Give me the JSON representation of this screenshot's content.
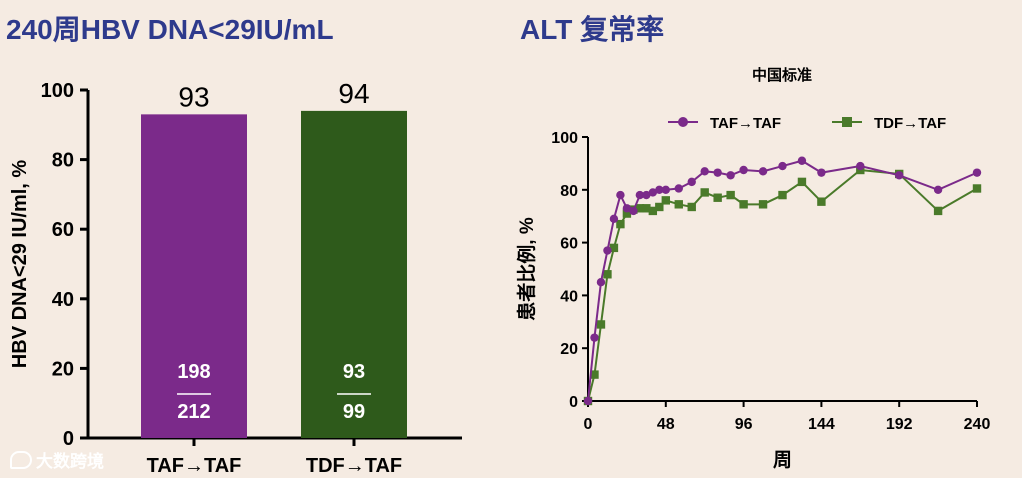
{
  "left_title": "240周HBV DNA<29IU/mL",
  "right_title": "ALT 复常率",
  "colors": {
    "title": "#2e3a8c",
    "taf": "#7b2a8a",
    "tdf": "#2e5a1b",
    "tdf_line": "#4a7a2a"
  },
  "watermark": {
    "icon": "chat-bubble-icon",
    "text": "大数跨境"
  },
  "chart_data": [
    {
      "type": "bar",
      "ylabel": "HBV DNA<29 IU/ml, %",
      "ylim": [
        0,
        100
      ],
      "yticks": [
        0,
        20,
        40,
        60,
        80,
        100
      ],
      "categories": [
        "TAF→TAF",
        "TDF→TAF"
      ],
      "values": [
        93,
        94
      ],
      "value_labels": [
        "93",
        "94"
      ],
      "fractions": [
        {
          "numerator": "198",
          "denominator": "212"
        },
        {
          "numerator": "93",
          "denominator": "99"
        }
      ],
      "colors": [
        "#7b2a8a",
        "#2e5a1b"
      ]
    },
    {
      "type": "line",
      "title": "中国标准",
      "xlabel": "周",
      "ylabel": "患者比例, %",
      "xlim": [
        0,
        240
      ],
      "ylim": [
        0,
        100
      ],
      "xticks": [
        0,
        48,
        96,
        144,
        192,
        240
      ],
      "yticks": [
        0,
        20,
        40,
        60,
        80,
        100
      ],
      "legend_position": "top",
      "series": [
        {
          "name": "TAF→TAF",
          "marker": "circle",
          "color": "#7b2a8a",
          "x": [
            0,
            4,
            8,
            12,
            16,
            20,
            24,
            28,
            32,
            36,
            40,
            44,
            48,
            56,
            64,
            72,
            80,
            88,
            96,
            108,
            120,
            132,
            144,
            168,
            192,
            216,
            240
          ],
          "y": [
            0,
            24,
            45,
            57,
            69,
            78,
            73,
            72,
            78,
            78,
            79,
            80,
            80,
            80.5,
            83,
            87,
            86.5,
            85.5,
            87.5,
            87,
            89,
            91,
            86.5,
            89,
            85.5,
            80,
            86.5
          ]
        },
        {
          "name": "TDF→TAF",
          "marker": "square",
          "color": "#4a7a2a",
          "x": [
            0,
            4,
            8,
            12,
            16,
            20,
            24,
            28,
            32,
            36,
            40,
            44,
            48,
            56,
            64,
            72,
            80,
            88,
            96,
            108,
            120,
            132,
            144,
            168,
            192,
            216,
            240
          ],
          "y": [
            0,
            10,
            29,
            48,
            58,
            67,
            71,
            72.5,
            73,
            73,
            72,
            73.5,
            76,
            74.5,
            73.5,
            79,
            77,
            78,
            74.5,
            74.5,
            78,
            83,
            75.5,
            87.5,
            86,
            72,
            80.5
          ]
        }
      ]
    }
  ]
}
